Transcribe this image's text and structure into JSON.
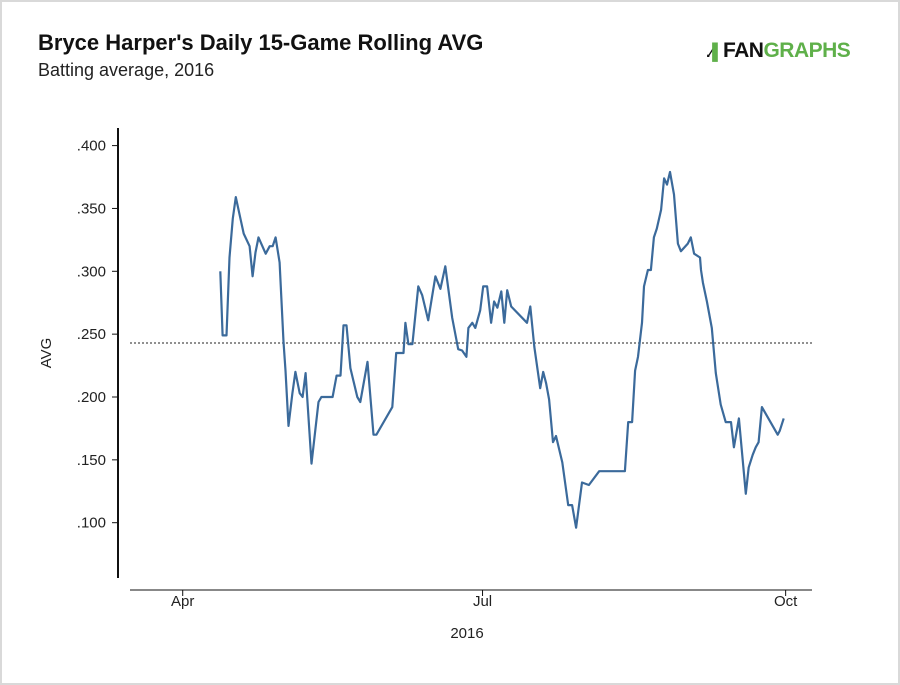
{
  "header": {
    "title": "Bryce Harper's Daily 15-Game Rolling AVG",
    "subtitle": "Batting average, 2016"
  },
  "logo": {
    "text": "FANGRAPHS",
    "part1": "FAN",
    "part2": "GRAPHS",
    "colors": {
      "fan": "#111111",
      "graphs": "#5fb04a"
    }
  },
  "chart_data": {
    "type": "line",
    "title": "Bryce Harper's Daily 15-Game Rolling AVG",
    "subtitle": "Batting average, 2016",
    "xlabel": "2016",
    "ylabel": "AVG",
    "x_unit": "days since Apr 1, 2016",
    "xlim": [
      -16,
      191
    ],
    "ylim": [
      0.056,
      0.414
    ],
    "xticks": [
      {
        "value": 0,
        "label": "Apr"
      },
      {
        "value": 91,
        "label": "Jul"
      },
      {
        "value": 183,
        "label": "Oct"
      }
    ],
    "yticks": [
      {
        "value": 0.1,
        "label": ".100"
      },
      {
        "value": 0.15,
        "label": ".150"
      },
      {
        "value": 0.2,
        "label": ".200"
      },
      {
        "value": 0.25,
        "label": ".250"
      },
      {
        "value": 0.3,
        "label": ".300"
      },
      {
        "value": 0.35,
        "label": ".350"
      },
      {
        "value": 0.4,
        "label": ".400"
      }
    ],
    "reference_line": 0.243,
    "line_color": "#3b6a9b",
    "grid": false,
    "series": [
      {
        "name": "15-Game Rolling AVG",
        "points": [
          [
            11.4,
            0.3
          ],
          [
            12.1,
            0.249
          ],
          [
            13.3,
            0.249
          ],
          [
            14.2,
            0.311
          ],
          [
            15.2,
            0.342
          ],
          [
            16.1,
            0.359
          ],
          [
            17.6,
            0.341
          ],
          [
            18.5,
            0.33
          ],
          [
            20.3,
            0.32
          ],
          [
            21.2,
            0.296
          ],
          [
            22.1,
            0.315
          ],
          [
            23.0,
            0.327
          ],
          [
            25.2,
            0.314
          ],
          [
            26.4,
            0.32
          ],
          [
            27.3,
            0.32
          ],
          [
            28.2,
            0.327
          ],
          [
            29.4,
            0.307
          ],
          [
            30.6,
            0.244
          ],
          [
            31.2,
            0.221
          ],
          [
            32.1,
            0.177
          ],
          [
            33.3,
            0.203
          ],
          [
            34.2,
            0.22
          ],
          [
            35.5,
            0.203
          ],
          [
            36.4,
            0.2
          ],
          [
            37.3,
            0.219
          ],
          [
            39.1,
            0.147
          ],
          [
            41.2,
            0.196
          ],
          [
            42.1,
            0.2
          ],
          [
            45.5,
            0.2
          ],
          [
            46.7,
            0.217
          ],
          [
            47.9,
            0.217
          ],
          [
            48.8,
            0.257
          ],
          [
            49.7,
            0.257
          ],
          [
            50.9,
            0.223
          ],
          [
            51.8,
            0.213
          ],
          [
            53.0,
            0.2
          ],
          [
            53.9,
            0.196
          ],
          [
            56.1,
            0.228
          ],
          [
            57.9,
            0.17
          ],
          [
            58.8,
            0.17
          ],
          [
            63.6,
            0.192
          ],
          [
            64.8,
            0.235
          ],
          [
            67.0,
            0.235
          ],
          [
            67.6,
            0.259
          ],
          [
            68.5,
            0.242
          ],
          [
            69.7,
            0.242
          ],
          [
            71.5,
            0.288
          ],
          [
            72.7,
            0.281
          ],
          [
            74.5,
            0.261
          ],
          [
            76.7,
            0.296
          ],
          [
            78.2,
            0.286
          ],
          [
            79.7,
            0.304
          ],
          [
            81.8,
            0.263
          ],
          [
            83.6,
            0.238
          ],
          [
            84.8,
            0.237
          ],
          [
            86.1,
            0.232
          ],
          [
            86.7,
            0.255
          ],
          [
            87.9,
            0.259
          ],
          [
            88.8,
            0.255
          ],
          [
            90.3,
            0.269
          ],
          [
            91.2,
            0.288
          ],
          [
            92.4,
            0.288
          ],
          [
            93.6,
            0.259
          ],
          [
            94.5,
            0.276
          ],
          [
            95.5,
            0.271
          ],
          [
            96.7,
            0.284
          ],
          [
            97.6,
            0.259
          ],
          [
            98.5,
            0.285
          ],
          [
            99.7,
            0.272
          ],
          [
            104.5,
            0.259
          ],
          [
            105.5,
            0.272
          ],
          [
            106.7,
            0.24
          ],
          [
            108.5,
            0.207
          ],
          [
            109.4,
            0.22
          ],
          [
            110.3,
            0.211
          ],
          [
            111.2,
            0.198
          ],
          [
            112.4,
            0.164
          ],
          [
            113.3,
            0.169
          ],
          [
            115.2,
            0.148
          ],
          [
            117.0,
            0.114
          ],
          [
            118.2,
            0.114
          ],
          [
            119.4,
            0.096
          ],
          [
            121.2,
            0.132
          ],
          [
            123.3,
            0.13
          ],
          [
            126.4,
            0.141
          ],
          [
            134.2,
            0.141
          ],
          [
            135.2,
            0.18
          ],
          [
            136.4,
            0.18
          ],
          [
            137.3,
            0.221
          ],
          [
            138.2,
            0.232
          ],
          [
            139.4,
            0.259
          ],
          [
            140.0,
            0.288
          ],
          [
            141.2,
            0.301
          ],
          [
            142.1,
            0.301
          ],
          [
            143.0,
            0.327
          ],
          [
            143.9,
            0.334
          ],
          [
            145.2,
            0.349
          ],
          [
            146.1,
            0.374
          ],
          [
            147.0,
            0.369
          ],
          [
            147.9,
            0.379
          ],
          [
            149.1,
            0.361
          ],
          [
            150.3,
            0.322
          ],
          [
            151.2,
            0.316
          ],
          [
            153.3,
            0.322
          ],
          [
            154.2,
            0.327
          ],
          [
            155.2,
            0.314
          ],
          [
            157.0,
            0.311
          ],
          [
            157.3,
            0.301
          ],
          [
            157.9,
            0.291
          ],
          [
            159.1,
            0.276
          ],
          [
            160.6,
            0.255
          ],
          [
            161.8,
            0.219
          ],
          [
            163.3,
            0.194
          ],
          [
            164.8,
            0.18
          ],
          [
            166.4,
            0.18
          ],
          [
            167.3,
            0.16
          ],
          [
            168.8,
            0.183
          ],
          [
            170.9,
            0.123
          ],
          [
            171.8,
            0.144
          ],
          [
            173.0,
            0.154
          ],
          [
            173.9,
            0.16
          ],
          [
            174.8,
            0.164
          ],
          [
            175.8,
            0.192
          ],
          [
            180.6,
            0.17
          ],
          [
            181.2,
            0.173
          ],
          [
            182.4,
            0.183
          ]
        ]
      }
    ]
  }
}
